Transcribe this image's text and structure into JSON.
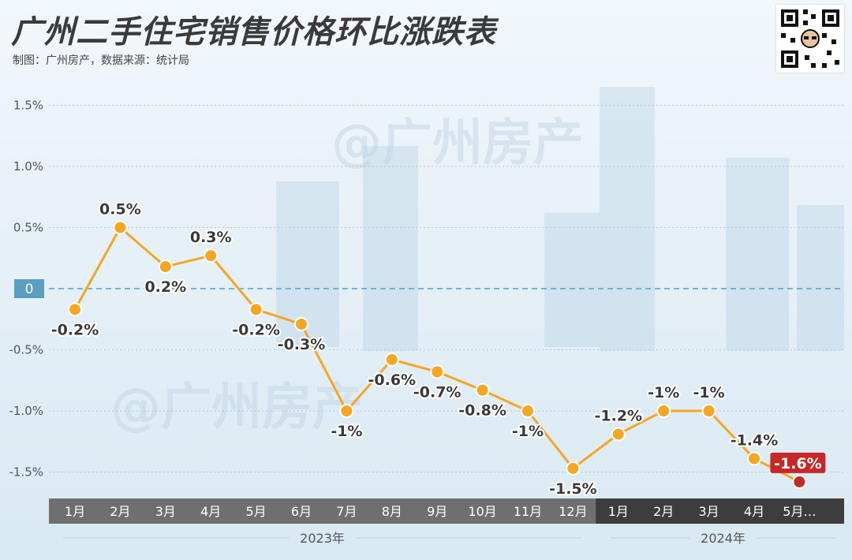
{
  "header": {
    "title": "广州二手住宅销售价格环比涨跌表",
    "subtitle": "制图：广州房产，数据来源：统计局"
  },
  "watermark_text": "@广州房产",
  "colors": {
    "line": "#f5a623",
    "point": "#f5a623",
    "last_point": "#c62828",
    "zero_badge": "#5b9fc0",
    "zero_line": "#5b9fc0",
    "axis_band_2023": "#6f6f6f",
    "axis_band_2024": "#3d3d3d"
  },
  "chart_data": {
    "type": "line",
    "title": "广州二手住宅销售价格环比涨跌表",
    "categories": [
      "1月",
      "2月",
      "3月",
      "4月",
      "5月",
      "6月",
      "7月",
      "8月",
      "9月",
      "10月",
      "11月",
      "12月",
      "1月",
      "2月",
      "3月",
      "4月",
      "5月…"
    ],
    "values": [
      -0.17,
      0.5,
      0.18,
      0.27,
      -0.17,
      -0.29,
      -1.0,
      -0.58,
      -0.68,
      -0.83,
      -1.0,
      -1.47,
      -1.19,
      -1.0,
      -1.0,
      -1.39,
      -1.58
    ],
    "point_labels": [
      "-0.2%",
      "0.5%",
      "0.2%",
      "0.3%",
      "-0.2%",
      "-0.3%",
      "-1%",
      "-0.6%",
      "-0.7%",
      "-0.8%",
      "-1%",
      "-1.5%",
      "-1.2%",
      "-1%",
      "-1%",
      "-1.4%",
      "-1.6%"
    ],
    "label_side": [
      "below",
      "above",
      "below",
      "above",
      "below",
      "below",
      "below",
      "below",
      "below",
      "below",
      "below",
      "below",
      "above",
      "above",
      "above",
      "above",
      "above"
    ],
    "highlight_last": true,
    "yticks": [
      1.5,
      1.0,
      0.5,
      0,
      -0.5,
      -1.0,
      -1.5
    ],
    "ytick_labels": [
      "1.5%",
      "1.0%",
      "0.5%",
      "0",
      "-0.5%",
      "-1.0%",
      "-1.5%"
    ],
    "ylim": [
      -1.75,
      1.6
    ],
    "years": [
      {
        "label": "2023年",
        "start": 0,
        "end": 11
      },
      {
        "label": "2024年",
        "start": 12,
        "end": 16
      }
    ],
    "grid": true,
    "zero_line_dashed": true
  }
}
